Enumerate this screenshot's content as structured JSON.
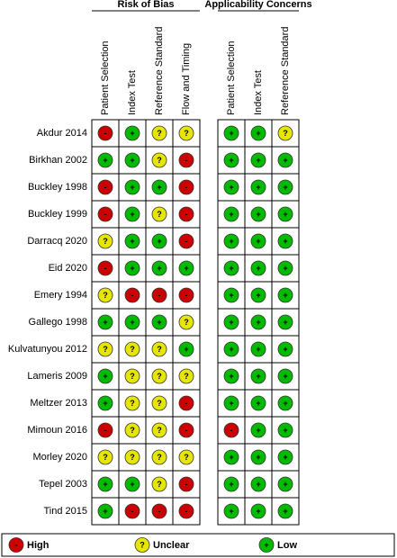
{
  "groups": [
    {
      "title": "Risk of Bias",
      "columns": [
        "Patient Selection",
        "Index Test",
        "Reference Standard",
        "Flow and Timing"
      ]
    },
    {
      "title": "Applicability Concerns",
      "columns": [
        "Patient Selection",
        "Index Test",
        "Reference Standard"
      ]
    }
  ],
  "studies": [
    {
      "name": "Akdur 2014",
      "judgments": [
        [
          "-",
          "+",
          "?",
          "?"
        ],
        [
          "+",
          "+",
          "?"
        ]
      ]
    },
    {
      "name": "Birkhan 2002",
      "judgments": [
        [
          "+",
          "+",
          "?",
          "-"
        ],
        [
          "+",
          "+",
          "+"
        ]
      ]
    },
    {
      "name": "Buckley 1998",
      "judgments": [
        [
          "-",
          "+",
          "+",
          "-"
        ],
        [
          "+",
          "+",
          "+"
        ]
      ]
    },
    {
      "name": "Buckley 1999",
      "judgments": [
        [
          "-",
          "+",
          "?",
          "-"
        ],
        [
          "+",
          "+",
          "+"
        ]
      ]
    },
    {
      "name": "Darracq 2020",
      "judgments": [
        [
          "?",
          "+",
          "+",
          "-"
        ],
        [
          "+",
          "+",
          "+"
        ]
      ]
    },
    {
      "name": "Eid 2020",
      "judgments": [
        [
          "-",
          "+",
          "+",
          "+"
        ],
        [
          "+",
          "+",
          "+"
        ]
      ]
    },
    {
      "name": "Emery 1994",
      "judgments": [
        [
          "?",
          "-",
          "-",
          "-"
        ],
        [
          "+",
          "+",
          "+"
        ]
      ]
    },
    {
      "name": "Gallego 1998",
      "judgments": [
        [
          "+",
          "+",
          "+",
          "?"
        ],
        [
          "+",
          "+",
          "+"
        ]
      ]
    },
    {
      "name": "Kulvatunyou 2012",
      "judgments": [
        [
          "?",
          "?",
          "?",
          "+"
        ],
        [
          "+",
          "+",
          "+"
        ]
      ]
    },
    {
      "name": "Lameris 2009",
      "judgments": [
        [
          "+",
          "?",
          "?",
          "?"
        ],
        [
          "+",
          "+",
          "+"
        ]
      ]
    },
    {
      "name": "Meltzer 2013",
      "judgments": [
        [
          "+",
          "?",
          "?",
          "-"
        ],
        [
          "+",
          "+",
          "+"
        ]
      ]
    },
    {
      "name": "Mimoun 2016",
      "judgments": [
        [
          "-",
          "?",
          "?",
          "-"
        ],
        [
          "-",
          "+",
          "+"
        ]
      ]
    },
    {
      "name": "Morley 2020",
      "judgments": [
        [
          "?",
          "?",
          "?",
          "?"
        ],
        [
          "+",
          "+",
          "+"
        ]
      ]
    },
    {
      "name": "Tepel 2003",
      "judgments": [
        [
          "+",
          "+",
          "?",
          "-"
        ],
        [
          "+",
          "+",
          "+"
        ]
      ]
    },
    {
      "name": "Tind 2015",
      "judgments": [
        [
          "+",
          "-",
          "-",
          "-"
        ],
        [
          "+",
          "+",
          "+"
        ]
      ]
    }
  ],
  "legend": [
    {
      "symbol": "-",
      "label": "High",
      "color": "#cc0000"
    },
    {
      "symbol": "?",
      "label": "Unclear",
      "color": "#e6e600"
    },
    {
      "symbol": "+",
      "label": "Low",
      "color": "#00bb00"
    }
  ]
}
